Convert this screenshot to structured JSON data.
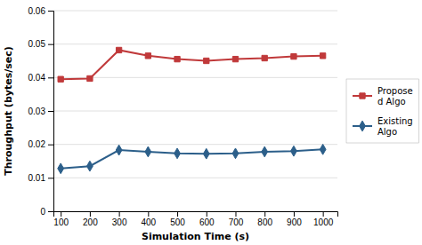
{
  "chart_data": {
    "type": "line",
    "x": [
      100,
      200,
      300,
      400,
      500,
      600,
      700,
      800,
      900,
      1000
    ],
    "series": [
      {
        "name": "Propose\nd Algo",
        "color": "#c0393a",
        "marker": "square",
        "values": [
          0.0395,
          0.0397,
          0.0482,
          0.0465,
          0.0455,
          0.045,
          0.0455,
          0.0458,
          0.0463,
          0.0465
        ]
      },
      {
        "name": "Existing\nAlgo",
        "color": "#2c5f8a",
        "marker": "diamond",
        "values": [
          0.0128,
          0.0135,
          0.0183,
          0.0178,
          0.0173,
          0.0172,
          0.0173,
          0.0178,
          0.018,
          0.0185
        ]
      }
    ],
    "xlabel": "Simulation Time (s)",
    "ylabel": "Throughput (bytes/sec)",
    "xlim": [
      75,
      1050
    ],
    "ylim": [
      0,
      0.06
    ],
    "xticks": [
      100,
      200,
      300,
      400,
      500,
      600,
      700,
      800,
      900,
      1000
    ],
    "yticks": [
      0,
      0.01,
      0.02,
      0.03,
      0.04,
      0.05,
      0.06
    ],
    "grid": true,
    "legend": "right"
  }
}
